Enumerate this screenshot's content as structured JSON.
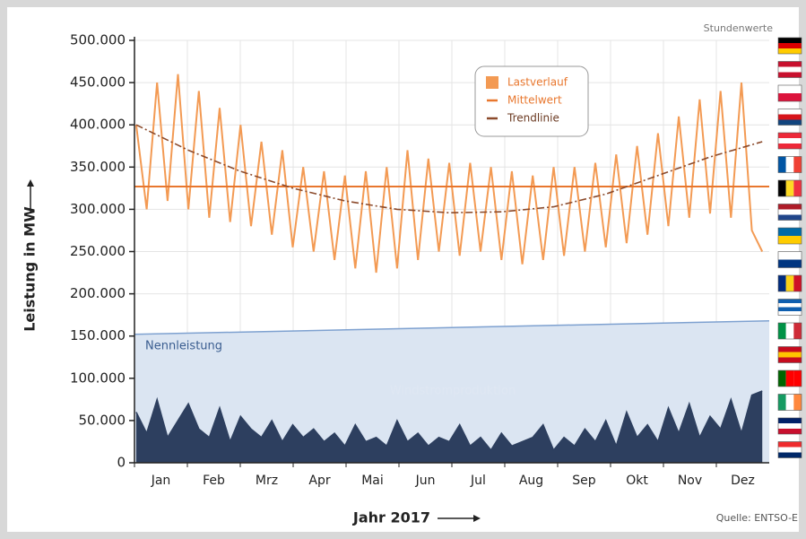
{
  "chart_data": {
    "type": "line",
    "subtitle": "Stundenwerte",
    "source": "Quelle: ENTSO-E",
    "xlabel": "Jahr 2017",
    "ylabel": "Leistung in MW",
    "categories": [
      "Jan",
      "Feb",
      "Mrz",
      "Apr",
      "Mai",
      "Jun",
      "Jul",
      "Aug",
      "Sep",
      "Okt",
      "Nov",
      "Dez"
    ],
    "xlim": [
      0,
      365
    ],
    "ylim": [
      0,
      500000
    ],
    "yticks": [
      0,
      {
        "value": 50000,
        "label": "50.000"
      },
      {
        "value": 100000,
        "label": "100.000"
      },
      {
        "value": 150000,
        "label": "150.000"
      },
      {
        "value": 200000,
        "label": "200.000"
      },
      {
        "value": 250000,
        "label": "250.000"
      },
      {
        "value": 300000,
        "label": "300.000"
      },
      {
        "value": 350000,
        "label": "350.000"
      },
      {
        "value": 400000,
        "label": "400.000"
      },
      {
        "value": 450000,
        "label": "450.000"
      },
      {
        "value": 500000,
        "label": "500.000"
      }
    ],
    "grid": true,
    "x": [
      1,
      7,
      13,
      19,
      25,
      31,
      37,
      43,
      49,
      55,
      61,
      67,
      73,
      79,
      85,
      91,
      97,
      103,
      109,
      115,
      121,
      127,
      133,
      139,
      145,
      151,
      157,
      163,
      169,
      175,
      181,
      187,
      193,
      199,
      205,
      211,
      217,
      223,
      229,
      235,
      241,
      247,
      253,
      259,
      265,
      271,
      277,
      283,
      289,
      295,
      301,
      307,
      313,
      319,
      325,
      331,
      337,
      343,
      349,
      355,
      361
    ],
    "annotations": [
      {
        "text": "Nennleistung",
        "series": 0
      },
      {
        "text": "Windstromproduktion",
        "series": 1
      }
    ],
    "series": [
      {
        "style": "area",
        "color": "#7ea1d0",
        "fill": "#dbe5f2",
        "x": [
          0,
          365
        ],
        "values": [
          152000,
          168000
        ]
      },
      {
        "style": "area",
        "color": "#2d3f5f",
        "fill": "#2d3f5f",
        "values": [
          60000,
          35000,
          75000,
          30000,
          50000,
          70000,
          40000,
          30000,
          65000,
          25000,
          55000,
          40000,
          30000,
          50000,
          25000,
          45000,
          30000,
          40000,
          25000,
          35000,
          20000,
          45000,
          25000,
          30000,
          20000,
          50000,
          25000,
          35000,
          20000,
          30000,
          25000,
          45000,
          20000,
          30000,
          15000,
          35000,
          20000,
          25000,
          30000,
          45000,
          15000,
          30000,
          20000,
          40000,
          25000,
          50000,
          20000,
          60000,
          30000,
          45000,
          25000,
          65000,
          35000,
          70000,
          30000,
          55000,
          40000,
          75000,
          35000,
          80000,
          85000
        ]
      },
      {
        "name": "Lastverlauf",
        "style": "line",
        "color": "#f39a53",
        "values": [
          400000,
          300000,
          450000,
          310000,
          460000,
          300000,
          440000,
          290000,
          420000,
          285000,
          400000,
          280000,
          380000,
          270000,
          370000,
          255000,
          350000,
          250000,
          345000,
          240000,
          340000,
          230000,
          345000,
          225000,
          350000,
          230000,
          370000,
          240000,
          360000,
          250000,
          355000,
          245000,
          355000,
          250000,
          350000,
          240000,
          345000,
          235000,
          340000,
          240000,
          350000,
          245000,
          350000,
          250000,
          355000,
          255000,
          365000,
          260000,
          375000,
          270000,
          390000,
          280000,
          410000,
          290000,
          430000,
          295000,
          440000,
          290000,
          450000,
          275000,
          250000
        ]
      },
      {
        "name": "Mittelwert",
        "style": "line",
        "color": "#e8772e",
        "x": [
          0,
          365
        ],
        "values": [
          327000,
          327000
        ]
      },
      {
        "name": "Trendlinie",
        "style": "dashdot",
        "color": "#8b4a2b",
        "x": [
          1,
          31,
          61,
          91,
          121,
          151,
          181,
          211,
          241,
          271,
          301,
          331,
          361
        ],
        "values": [
          400000,
          370000,
          345000,
          325000,
          310000,
          300000,
          296000,
          297000,
          303000,
          318000,
          340000,
          362000,
          380000
        ]
      }
    ]
  }
}
